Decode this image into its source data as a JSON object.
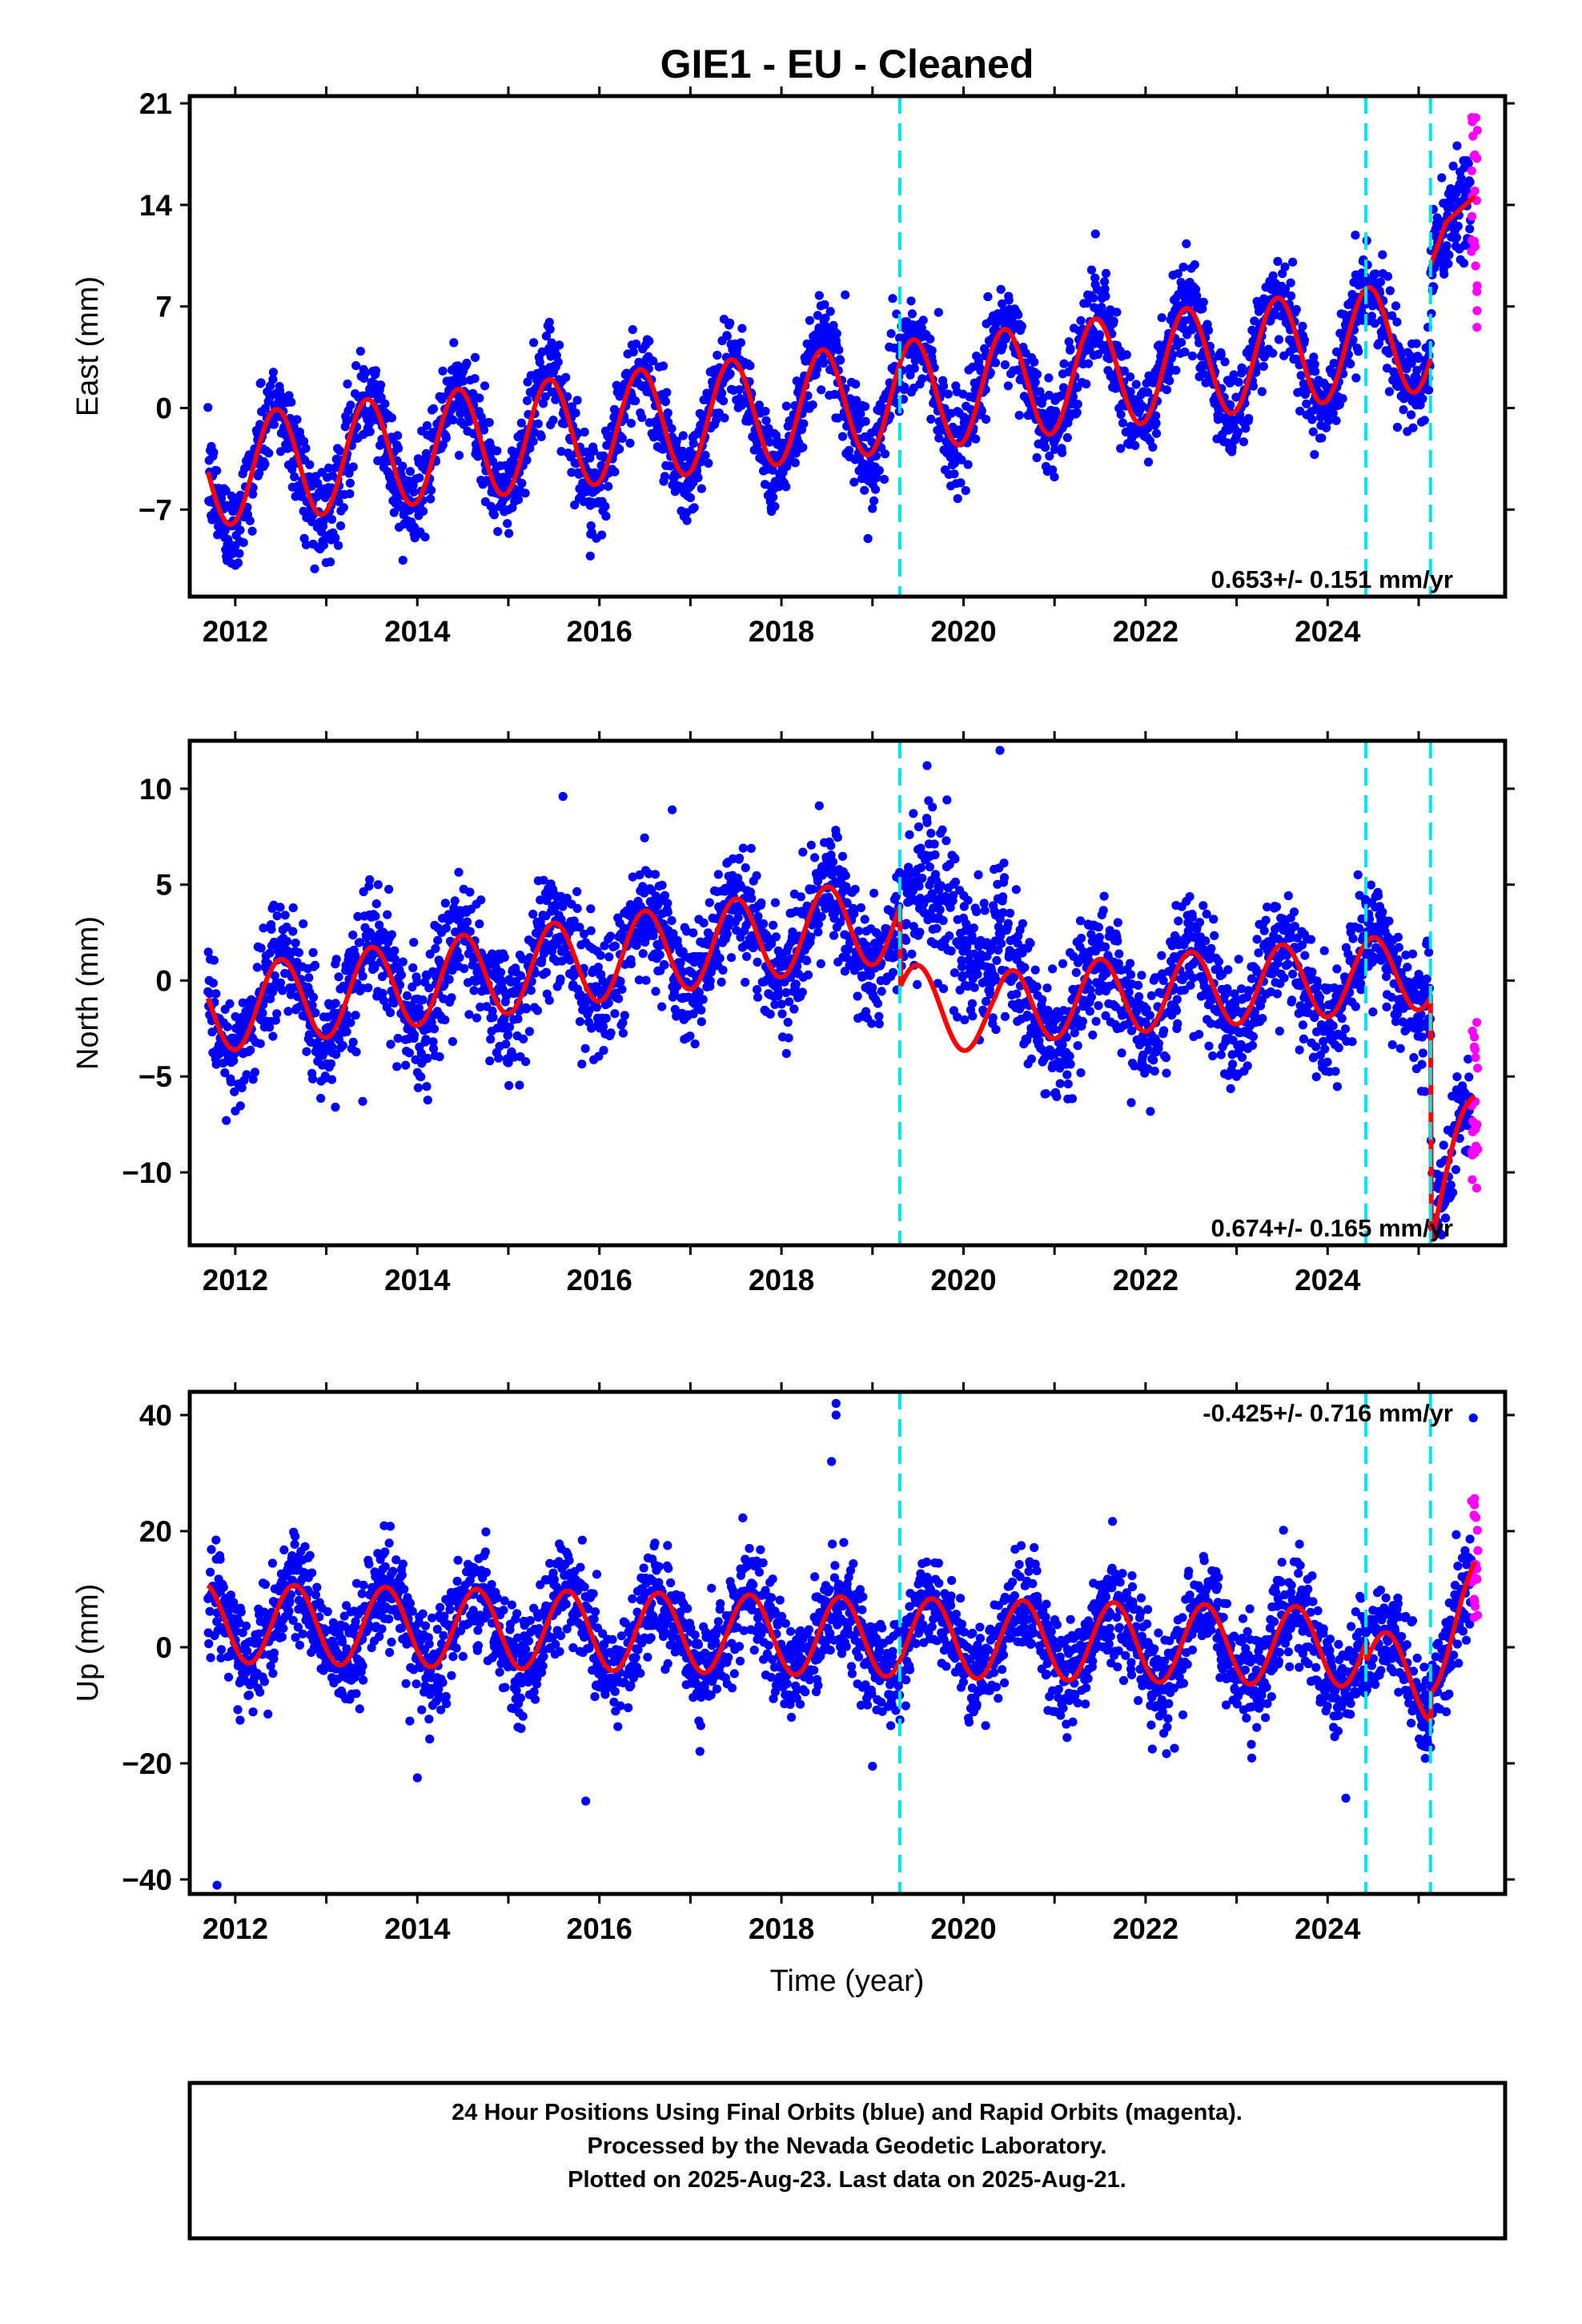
{
  "figure": {
    "title": "GIE1  - EU - Cleaned",
    "xlabel": "Time (year)",
    "caption": [
      "24 Hour Positions Using Final Orbits (blue) and Rapid Orbits (magenta).",
      "Processed by the Nevada Geodetic Laboratory.",
      "Plotted on 2025-Aug-23. Last data on 2025-Aug-21."
    ],
    "colors": {
      "final": "#0000ff",
      "rapid": "#ff00ff",
      "model": "#ff0000",
      "steps": "#00e5ee"
    }
  },
  "chart_data": [
    {
      "type": "scatter",
      "component": "east",
      "ylabel": "East (mm)",
      "rate_label": "0.653+/- 0.151 mm/yr",
      "xlim": [
        2011.5,
        2025.95
      ],
      "ylim": [
        -13,
        21.5
      ],
      "yticks": [
        "21",
        "14",
        "7",
        "0",
        "-7"
      ],
      "yticks_values": [
        21,
        14,
        7,
        0,
        -7
      ],
      "xticks": [
        "2012",
        "2014",
        "2016",
        "2018",
        "2020",
        "2022",
        "2024"
      ],
      "xticks_values": [
        2012,
        2014,
        2016,
        2018,
        2020,
        2022,
        2024
      ],
      "steps": [
        2019.3,
        2024.42,
        2025.13
      ],
      "model": {
        "segments": [
          [
            2011.7,
            2025.13
          ],
          [
            2025.13,
            2025.62
          ]
        ],
        "amplitude": 3.8,
        "phase_peak": 0.45,
        "base_points": [
          [
            2011.7,
            -4.4
          ],
          [
            2019.3,
            0.8
          ],
          [
            2025.13,
            5.0
          ]
        ],
        "post_step_points": [
          [
            2025.13,
            9.8
          ],
          [
            2025.3,
            12.8
          ],
          [
            2025.62,
            14.6
          ]
        ]
      },
      "scatter_sigma": 1.6,
      "rapid_range": [
        5.5,
        20.5
      ],
      "outliers": [
        [
          2021.45,
          12.0
        ],
        [
          2018.7,
          7.8
        ],
        [
          2016.9,
          -7.1
        ],
        [
          2012.0,
          -9.5
        ],
        [
          2015.9,
          -10.2
        ],
        [
          2022.9,
          -2.4
        ],
        [
          2018.95,
          -9.0
        ]
      ]
    },
    {
      "type": "scatter",
      "component": "north",
      "ylabel": "North (mm)",
      "rate_label": "0.674+/- 0.165 mm/yr",
      "xlim": [
        2011.5,
        2025.95
      ],
      "ylim": [
        -13.8,
        12.5
      ],
      "yticks": [
        "10",
        "5",
        "0",
        "-5",
        "-10"
      ],
      "yticks_values": [
        10,
        5,
        0,
        -5,
        -10
      ],
      "xticks": [
        "2012",
        "2014",
        "2016",
        "2018",
        "2020",
        "2022",
        "2024"
      ],
      "xticks_values": [
        2012,
        2014,
        2016,
        2018,
        2020,
        2022,
        2024
      ],
      "steps": [
        2019.3,
        2024.42,
        2025.13
      ],
      "model": {
        "segments": [
          [
            2011.7,
            2019.3
          ],
          [
            2019.3,
            2025.13
          ],
          [
            2025.13,
            2025.62
          ]
        ],
        "amplitude": 2.2,
        "phase_peak": 0.5,
        "base_points": [
          [
            2011.7,
            -1.6
          ],
          [
            2019.3,
            3.2
          ],
          [
            2019.31,
            -1.0
          ],
          [
            2020.35,
            -2.0
          ],
          [
            2020.6,
            -1.2
          ],
          [
            2025.13,
            0.5
          ],
          [
            2025.14,
            -12.3
          ],
          [
            2025.62,
            -7.5
          ]
        ]
      },
      "scatter_sigma": 1.5,
      "rapid_range": [
        -11.8,
        -2.0
      ],
      "anomaly": {
        "range": [
          2019.3,
          2020.45
        ],
        "level": 4.5
      },
      "outliers": [
        [
          2015.6,
          9.6
        ],
        [
          2016.8,
          8.9
        ],
        [
          2020.4,
          12.0
        ],
        [
          2019.6,
          11.2
        ],
        [
          2012.0,
          -6.8
        ],
        [
          2013.1,
          -6.6
        ],
        [
          2013.4,
          -6.3
        ]
      ]
    },
    {
      "type": "scatter",
      "component": "up",
      "ylabel": "Up (mm)",
      "rate_label": "-0.425+/- 0.716 mm/yr",
      "xlim": [
        2011.5,
        2025.95
      ],
      "ylim": [
        -42.5,
        44
      ],
      "yticks": [
        "40",
        "20",
        "0",
        "-20",
        "-40"
      ],
      "yticks_values": [
        40,
        20,
        0,
        -20,
        -40
      ],
      "xticks": [
        "2012",
        "2014",
        "2016",
        "2018",
        "2020",
        "2022",
        "2024"
      ],
      "xticks_values": [
        2012,
        2014,
        2016,
        2018,
        2020,
        2022,
        2024
      ],
      "steps": [
        2019.3,
        2024.42,
        2025.13
      ],
      "model": {
        "segments": [
          [
            2011.7,
            2024.42
          ],
          [
            2024.42,
            2025.13
          ],
          [
            2025.13,
            2025.62
          ]
        ],
        "amplitude": 6.8,
        "phase_peak": 0.65,
        "base_points": [
          [
            2011.7,
            4.2
          ],
          [
            2024.42,
            0.0
          ],
          [
            2024.43,
            -3.5
          ],
          [
            2025.13,
            -6.0
          ],
          [
            2025.14,
            -1.0
          ],
          [
            2025.62,
            8.0
          ]
        ]
      },
      "scatter_sigma": 4.5,
      "rapid_range": [
        5.0,
        27.0
      ],
      "outliers": [
        [
          2011.8,
          -41.0
        ],
        [
          2018.6,
          42.0
        ],
        [
          2018.6,
          40.0
        ],
        [
          2018.55,
          32.0
        ],
        [
          2015.85,
          -26.5
        ],
        [
          2014.0,
          -22.5
        ],
        [
          2024.2,
          -26.0
        ],
        [
          2019.0,
          -20.5
        ],
        [
          2025.6,
          39.5
        ]
      ]
    }
  ]
}
